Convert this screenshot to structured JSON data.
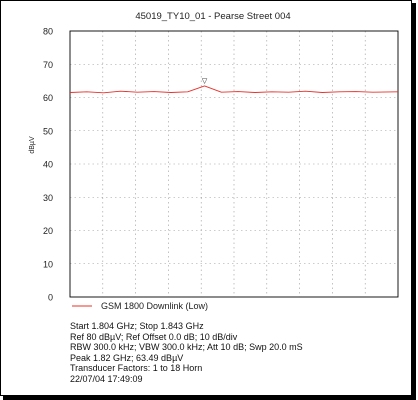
{
  "chart_data": {
    "type": "line",
    "title": "45019_TY10_01 - Pearse Street 004",
    "xlabel": "",
    "ylabel": "dBµV",
    "ylim": [
      0,
      80
    ],
    "yticks": [
      0,
      10,
      20,
      30,
      40,
      50,
      60,
      70,
      80
    ],
    "xlim": [
      1.804,
      1.843
    ],
    "x_unit": "GHz",
    "grid": true,
    "grid_style": "dotted",
    "legend_position": "bottom-left",
    "peak_marker": {
      "x": 1.82,
      "y": 63.49,
      "symbol": "▽"
    },
    "series": [
      {
        "name": "GSM 1800 Downlink (Low)",
        "color": "#e8302a",
        "x": [
          1.804,
          1.806,
          1.808,
          1.81,
          1.812,
          1.814,
          1.816,
          1.818,
          1.82,
          1.822,
          1.824,
          1.826,
          1.828,
          1.83,
          1.832,
          1.834,
          1.836,
          1.838,
          1.84,
          1.843
        ],
        "values": [
          61.5,
          61.7,
          61.4,
          61.9,
          61.6,
          61.8,
          61.5,
          61.7,
          63.49,
          61.6,
          61.8,
          61.5,
          61.7,
          61.6,
          61.9,
          61.5,
          61.7,
          61.8,
          61.6,
          61.7
        ]
      }
    ]
  },
  "info": {
    "lines": [
      "Start 1.804 GHz; Stop 1.843 GHz",
      "Ref 80 dBµV; Ref Offset 0.0 dB; 10 dB/div",
      "RBW 300.0 kHz; VBW 300.0 kHz; Att 10 dB; Swp 20.0 mS",
      "Peak 1.82 GHz; 63.49 dBµV",
      "Transducer Factors: 1 to 18 Horn",
      "22/07/04 17:49:09"
    ]
  }
}
